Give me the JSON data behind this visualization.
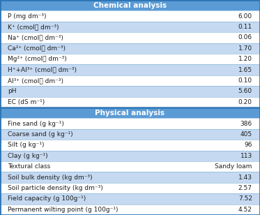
{
  "title_chem": "Chemical analysis",
  "title_phys": "Physical analysis",
  "chem_rows": [
    [
      "P (mg dm⁻³)",
      "6.00"
    ],
    [
      "K⁺ (cmolⲟ dm⁻³)",
      "0.11"
    ],
    [
      "Na⁺ (cmolⲟ dm⁻³)",
      "0.06"
    ],
    [
      "Ca²⁺ (cmolⲟ dm⁻³)",
      "1.70"
    ],
    [
      "Mg²⁺ (cmolⲟ dm⁻³)",
      "1.20"
    ],
    [
      "H⁺+Al³⁺ (cmolⲟ dm⁻³)",
      "1.65"
    ],
    [
      "Al³⁺ (cmolⲟ dm⁻³)",
      "0.10"
    ],
    [
      "pH",
      "5.60"
    ],
    [
      "EC (dS m⁻¹)",
      "0.20"
    ]
  ],
  "phys_rows": [
    [
      "Fine sand (g kg⁻¹)",
      "386"
    ],
    [
      "Coarse sand (g kg⁻¹)",
      "405"
    ],
    [
      "Silt (g kg⁻¹)",
      "96"
    ],
    [
      "Clay (g kg⁻¹)",
      "113"
    ],
    [
      "Textural class",
      "Sandy loam"
    ],
    [
      "Soil bulk density (kg dm⁻³)",
      "1.43"
    ],
    [
      "Soil particle density (kg dm⁻³)",
      "2.57"
    ],
    [
      "Field capacity (g 100g⁻¹)",
      "7.52"
    ],
    [
      "Permanent wilting point (g 100g⁻¹)",
      "4.52"
    ]
  ],
  "header_bg": "#5b9bd5",
  "row_light": "#c5d9f1",
  "row_white": "#ffffff",
  "header_text_color": "#ffffff",
  "row_text_color": "#1f1f1f",
  "border_color": "#2e75b6",
  "fig_bg": "#dce6f1"
}
